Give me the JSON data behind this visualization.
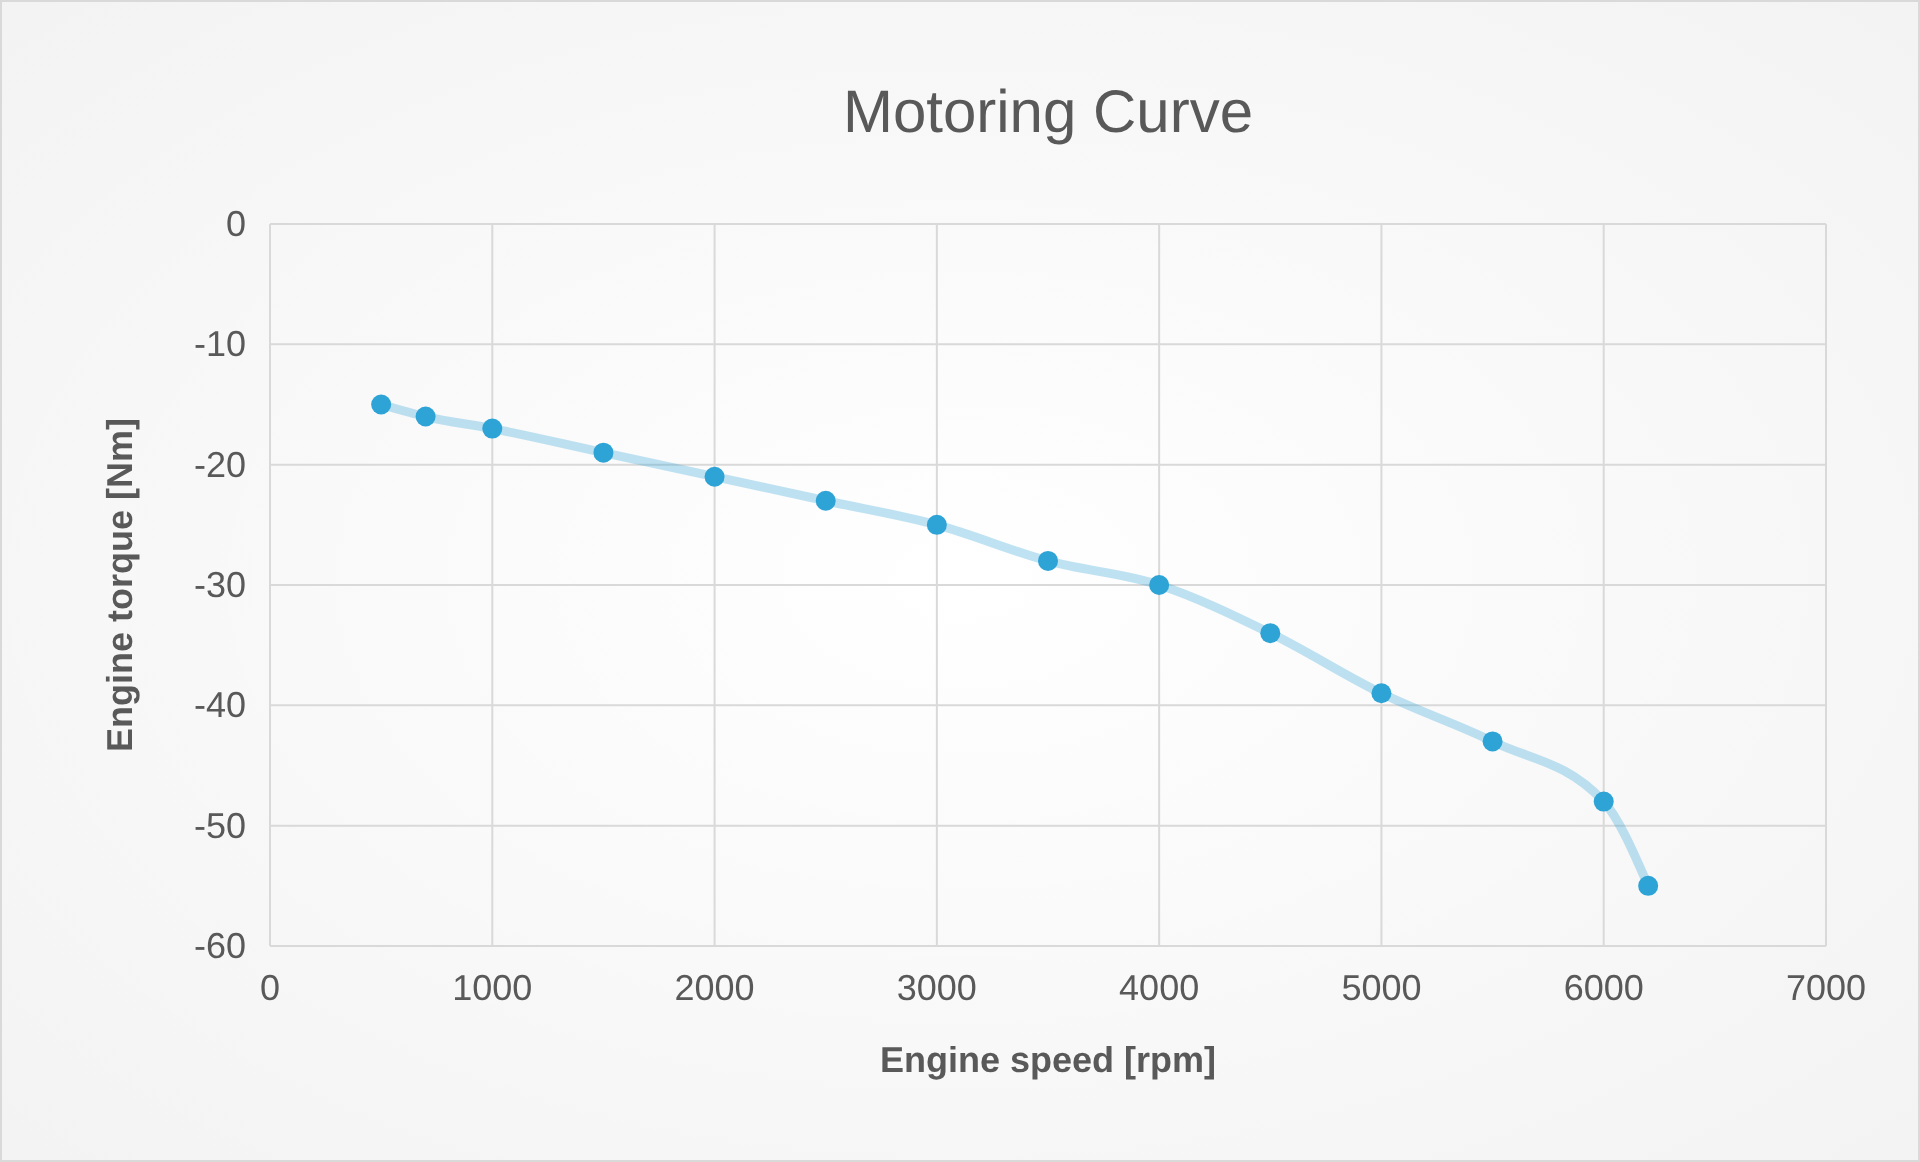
{
  "chart_data": {
    "type": "line",
    "title": "Motoring Curve",
    "xlabel": "Engine speed [rpm]",
    "ylabel": "Engine torque [Nm]",
    "x": [
      500,
      700,
      1000,
      1500,
      2000,
      2500,
      3000,
      3500,
      4000,
      4500,
      5000,
      5500,
      6000,
      6200
    ],
    "series": [
      {
        "color": "#2ea3d6",
        "values": [
          -15,
          -16,
          -17,
          -19,
          -21,
          -23,
          -25,
          -28,
          -30,
          -34,
          -39,
          -43,
          -48,
          -55
        ]
      }
    ],
    "xlim": [
      0,
      7000
    ],
    "xticks": [
      0,
      1000,
      2000,
      3000,
      4000,
      5000,
      6000,
      7000
    ],
    "ylim": [
      -60,
      0
    ],
    "yticks": [
      -60,
      -50,
      -40,
      -30,
      -20,
      -10,
      0
    ],
    "grid": true,
    "marker": "circle",
    "line_style": "solid"
  }
}
